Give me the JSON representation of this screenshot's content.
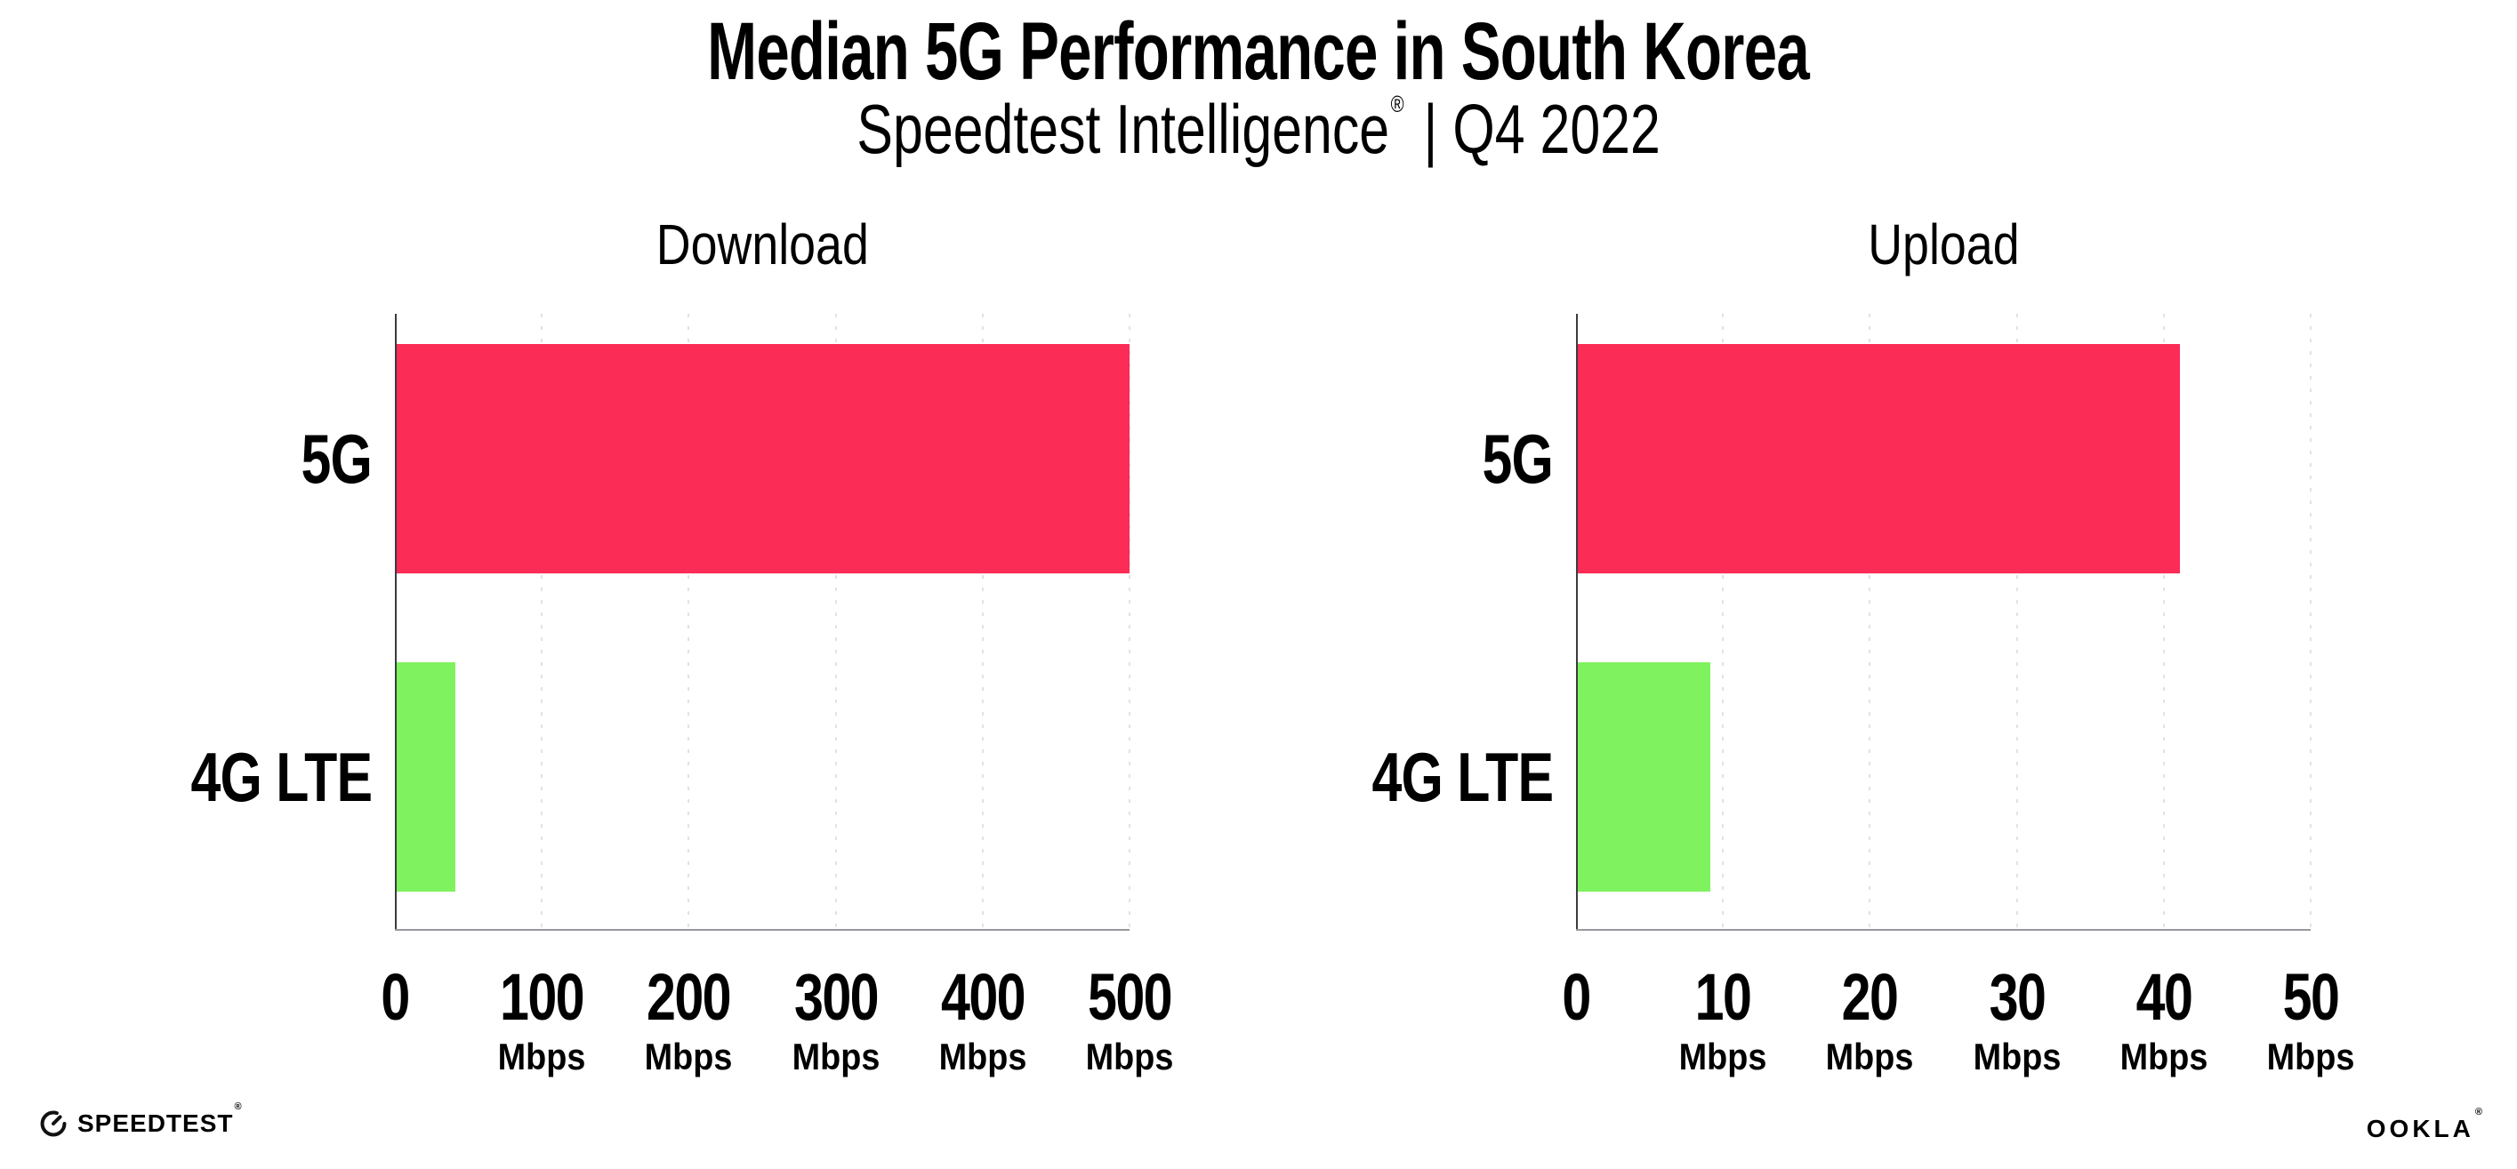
{
  "header": {
    "title": "Median 5G Performance in South Korea",
    "subtitle": {
      "brand": "Speedtest Intelligence",
      "registered_mark": "®",
      "divider": "|",
      "period": "Q4 2022"
    }
  },
  "chart_data": [
    {
      "type": "bar",
      "orientation": "horizontal",
      "title": "Download",
      "categories": [
        "5G",
        "4G LTE"
      ],
      "values": [
        499,
        40
      ],
      "value_unit": "Mbps",
      "xlim": [
        0,
        500
      ],
      "xticks": [
        0,
        100,
        200,
        300,
        400,
        500
      ],
      "xtick_unit": "Mbps",
      "bar_colors": [
        "#fb2c56",
        "#7ef35f"
      ],
      "grid": "vertical-dotted",
      "legend": "none"
    },
    {
      "type": "bar",
      "orientation": "horizontal",
      "title": "Upload",
      "categories": [
        "5G",
        "4G LTE"
      ],
      "values": [
        41,
        9
      ],
      "value_unit": "Mbps",
      "xlim": [
        0,
        50
      ],
      "xticks": [
        0,
        10,
        20,
        30,
        40,
        50
      ],
      "xtick_unit": "Mbps",
      "bar_colors": [
        "#fb2c56",
        "#7ef35f"
      ],
      "grid": "vertical-dotted",
      "legend": "none"
    }
  ],
  "footer": {
    "speedtest_logo_text": "SPEEDTEST",
    "speedtest_trademark": "®",
    "ookla_logo_text": "OOKLA",
    "ookla_trademark": "®"
  },
  "colors": {
    "bar_5g": "#fb2c56",
    "bar_4g_lte": "#7ef35f",
    "gridline": "#e0e1ea",
    "x_axis_line": "#98989e",
    "y_axis_line": "#3b3b40",
    "text": "#000000",
    "background": "#ffffff"
  }
}
